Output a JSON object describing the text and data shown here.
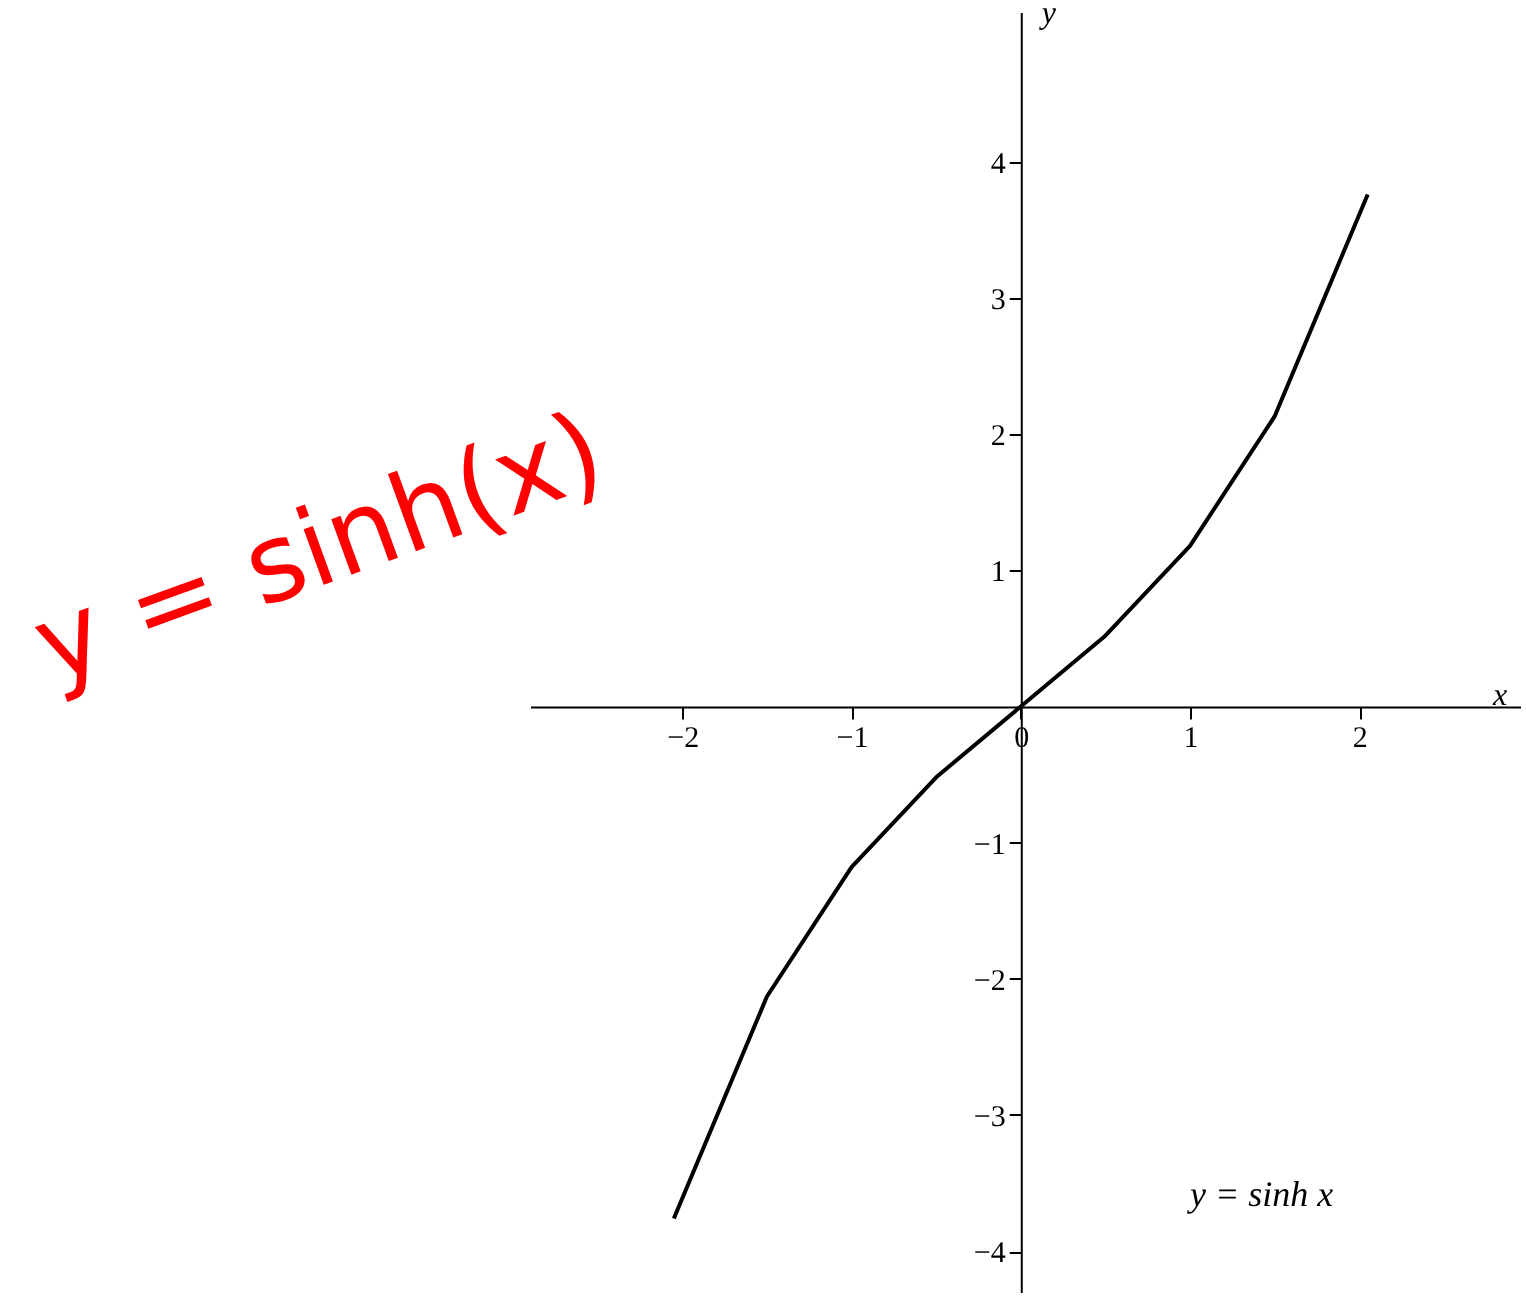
{
  "chart_data": {
    "type": "line",
    "xlabel": "x",
    "ylabel": "y",
    "x": [
      -2.05,
      -1.5,
      -1,
      -0.5,
      0,
      0.5,
      1,
      1.5,
      2.05
    ],
    "series": [
      {
        "color": "#000000",
        "values": [
          -3.76,
          -2.13,
          -1.18,
          -0.52,
          0,
          0.52,
          1.18,
          2.13,
          3.76
        ]
      }
    ],
    "xlim": [
      -2.9,
      2.95
    ],
    "ylim": [
      -4.3,
      5.1
    ],
    "xticks": [
      -2,
      -1,
      0,
      1,
      2
    ],
    "yticks": [
      -4,
      -3,
      -2,
      -1,
      1,
      2,
      3,
      4
    ],
    "grid": false,
    "marker": "none",
    "line_style": "solid",
    "annotations": [
      "y = sinh(x)",
      "y = sinh x"
    ]
  }
}
